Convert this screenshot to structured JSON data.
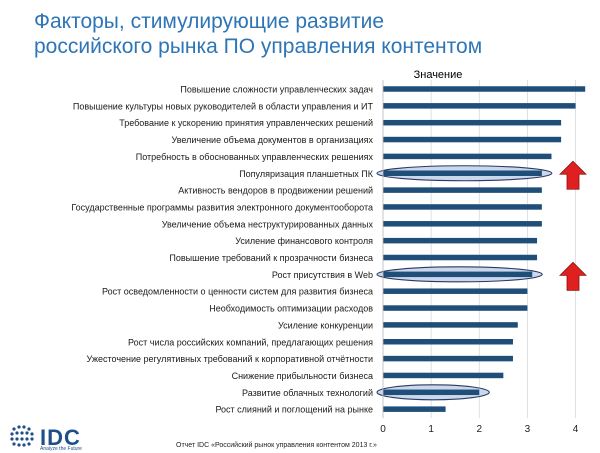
{
  "title": {
    "line1": "Факторы, стимулирующие развитие",
    "line2": "российского рынка ПО управления контентом"
  },
  "footer": "Отчет IDC «Российский рынок управления контентом 2013 г.»",
  "logo": {
    "name": "IDC",
    "tagline": "Analyze the Future",
    "color": "#1f4f8a"
  },
  "colors": {
    "title": "#2e75b6",
    "bar": "#1f4e79",
    "highlight_fill": "#c9d6ec",
    "arrow": "#e02020"
  },
  "chart_data": {
    "type": "bar",
    "orientation": "horizontal",
    "legend": "Значение",
    "legend_placement": "top-center",
    "categories": [
      "Повышение сложности управленческих задач",
      "Повышение культуры новых руководителей в области управления и ИТ",
      "Требование к ускорению принятия управленческих решений",
      "Увеличение объема документов в организациях",
      "Потребность в обоснованных управленческих решениях",
      "Популяризация планшетных ПК",
      "Активность вендоров в продвижении решений",
      "Государственные программы развития электронного документооборота",
      "Увеличение объема неструктурированных данных",
      "Усиление финансового контроля",
      "Повышение требований к прозрачности бизнеса",
      "Рост присутствия в Web",
      "Рост осведомленности о ценности систем для развития бизнеса",
      "Необходимость оптимизации расходов",
      "Усиление конкуренции",
      "Рост числа российских компаний, предлагающих решения",
      "Ужесточение регулятивных требований к корпоративной отчётности",
      "Снижение прибыльности бизнеса",
      "Развитие облачных технологий",
      "Рост слияний и поглощений на рынке"
    ],
    "values": [
      4.2,
      4.0,
      3.7,
      3.7,
      3.5,
      3.3,
      3.3,
      3.3,
      3.3,
      3.2,
      3.2,
      3.1,
      3.0,
      3.0,
      2.8,
      2.7,
      2.7,
      2.5,
      2.0,
      1.3
    ],
    "xlim": [
      0,
      4.3
    ],
    "xticks": [
      "0",
      "1",
      "2",
      "3",
      "4"
    ],
    "highlighted": [
      "Популяризация планшетных ПК",
      "Рост присутствия в Web",
      "Развитие облачных технологий"
    ],
    "arrows_up": [
      "Популяризация планшетных ПК",
      "Рост присутствия в Web"
    ],
    "grid": true
  }
}
